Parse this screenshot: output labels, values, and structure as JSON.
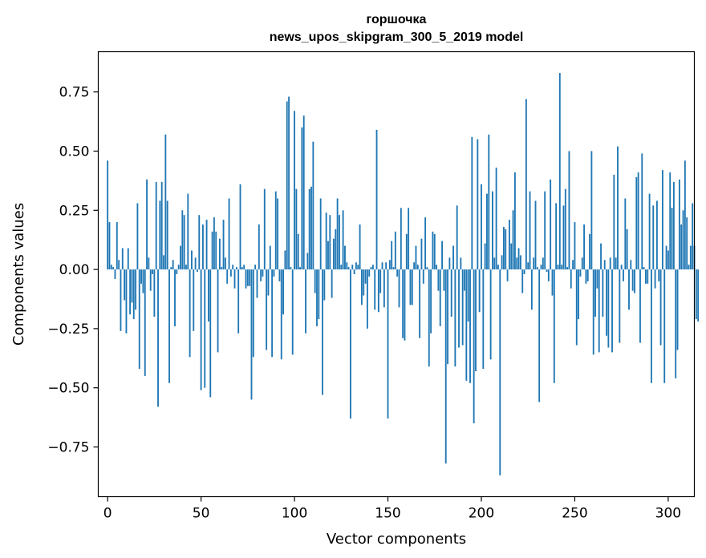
{
  "chart_data": {
    "type": "bar",
    "title": "горшочка",
    "subtitle": "news_upos_skipgram_300_5_2019 model",
    "xlabel": "Vector components",
    "ylabel": "Components values",
    "xlim": [
      -5,
      314
    ],
    "ylim": [
      -0.96,
      0.92
    ],
    "xticks": [
      0,
      50,
      100,
      150,
      200,
      250,
      300
    ],
    "xtick_labels": [
      "0",
      "50",
      "100",
      "150",
      "200",
      "250",
      "300"
    ],
    "yticks": [
      0.75,
      0.5,
      0.25,
      0.0,
      -0.25,
      -0.5,
      -0.75
    ],
    "ytick_labels": [
      "0.75",
      "0.50",
      "0.25",
      "0.00",
      "−0.25",
      "−0.50",
      "−0.75"
    ],
    "bar_color": "#1f77b4",
    "values": [
      0.46,
      0.2,
      0.02,
      0.01,
      -0.04,
      0.2,
      0.04,
      -0.26,
      0.09,
      -0.13,
      -0.27,
      0.09,
      -0.19,
      -0.14,
      -0.21,
      -0.17,
      0.28,
      -0.42,
      -0.06,
      -0.1,
      -0.45,
      0.38,
      0.05,
      -0.09,
      -0.02,
      -0.2,
      0.37,
      -0.58,
      0.29,
      0.37,
      0.06,
      0.57,
      0.29,
      -0.48,
      0.01,
      0.04,
      -0.24,
      -0.02,
      0.02,
      0.1,
      0.25,
      0.23,
      0.02,
      0.32,
      -0.37,
      0.08,
      -0.26,
      0.05,
      -0.01,
      0.23,
      -0.51,
      0.19,
      -0.5,
      0.21,
      -0.22,
      -0.54,
      0.16,
      0.22,
      0.16,
      -0.35,
      0.13,
      0.01,
      0.21,
      0.05,
      -0.06,
      0.3,
      -0.03,
      0.02,
      -0.08,
      0.01,
      -0.27,
      0.36,
      0.01,
      0.02,
      -0.08,
      -0.07,
      -0.07,
      -0.55,
      -0.37,
      0.02,
      -0.12,
      0.19,
      -0.05,
      -0.03,
      0.34,
      -0.34,
      -0.11,
      0.1,
      -0.37,
      -0.03,
      0.33,
      0.3,
      -0.05,
      -0.38,
      -0.19,
      0.08,
      0.71,
      0.73,
      0.01,
      -0.36,
      0.67,
      0.34,
      0.15,
      0.01,
      0.6,
      0.65,
      -0.27,
      0.07,
      0.34,
      0.35,
      0.54,
      -0.1,
      -0.24,
      -0.21,
      0.3,
      -0.53,
      -0.13,
      0.24,
      0.12,
      0.23,
      -0.12,
      0.13,
      0.17,
      0.3,
      0.23,
      0.02,
      0.25,
      0.1,
      0.03,
      0.01,
      -0.63,
      0.02,
      -0.02,
      0.03,
      0.02,
      0.19,
      -0.15,
      -0.11,
      -0.06,
      -0.25,
      -0.03,
      0.01,
      0.02,
      -0.17,
      0.59,
      -0.18,
      -0.1,
      0.03,
      -0.16,
      0.03,
      -0.63,
      0.04,
      0.12,
      0.01,
      0.16,
      -0.03,
      -0.16,
      0.26,
      -0.29,
      -0.3,
      0.15,
      0.26,
      -0.15,
      -0.15,
      0.03,
      0.1,
      0.02,
      -0.29,
      0.13,
      -0.06,
      0.22,
      0.01,
      -0.41,
      -0.27,
      0.16,
      0.15,
      0.02,
      -0.09,
      -0.24,
      0.12,
      -0.09,
      -0.82,
      -0.4,
      0.05,
      -0.2,
      0.1,
      -0.41,
      0.27,
      -0.33,
      0.05,
      -0.32,
      -0.09,
      -0.47,
      -0.22,
      -0.48,
      0.56,
      -0.65,
      -0.43,
      0.55,
      -0.18,
      0.36,
      -0.42,
      0.11,
      0.32,
      0.57,
      -0.38,
      0.33,
      0.05,
      0.43,
      0.02,
      -0.87,
      0.06,
      0.18,
      0.17,
      -0.05,
      0.21,
      0.11,
      0.25,
      0.41,
      0.05,
      0.09,
      0.06,
      -0.1,
      -0.02,
      0.72,
      0.03,
      0.33,
      -0.17,
      0.05,
      0.29,
      0.01,
      -0.56,
      0.02,
      0.05,
      0.33,
      -0.01,
      -0.05,
      0.38,
      -0.11,
      -0.48,
      0.28,
      0.02,
      0.83,
      0.02,
      0.27,
      0.34,
      0.01,
      0.5,
      -0.08,
      0.04,
      0.2,
      -0.32,
      -0.21,
      -0.03,
      0.05,
      0.19,
      -0.06,
      -0.05,
      0.15,
      0.5,
      -0.36,
      -0.2,
      -0.08,
      -0.35,
      0.11,
      -0.2,
      0.04,
      -0.28,
      -0.33,
      0.05,
      -0.35,
      0.4,
      0.05,
      0.52,
      -0.31,
      0.02,
      -0.05,
      0.3,
      0.17,
      -0.17,
      0.04,
      -0.09,
      -0.1,
      0.39,
      0.41,
      -0.31,
      0.49,
      0.01,
      -0.06,
      -0.06,
      0.32,
      -0.48,
      0.27,
      -0.08,
      0.29,
      -0.05,
      -0.32,
      0.42,
      -0.48,
      0.1,
      0.08,
      0.41,
      0.26,
      0.37,
      -0.46,
      -0.34,
      0.38,
      0.19,
      0.25,
      0.46,
      0.22,
      0.02,
      0.1,
      0.28,
      0.1,
      -0.21,
      -0.22
    ]
  }
}
